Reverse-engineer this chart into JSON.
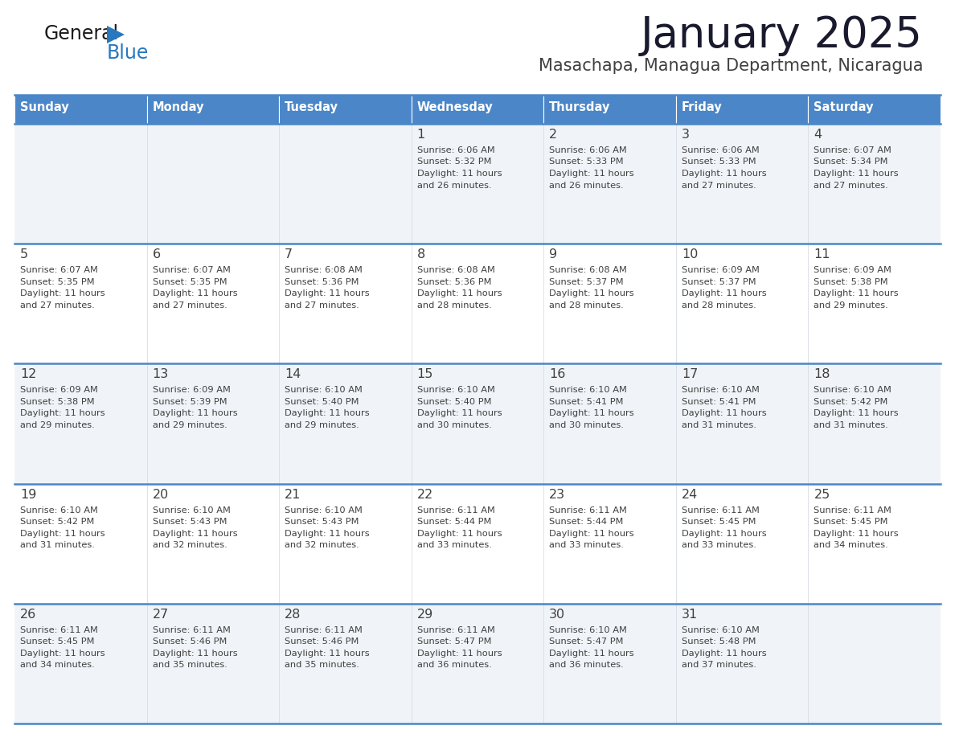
{
  "title": "January 2025",
  "subtitle": "Masachapa, Managua Department, Nicaragua",
  "days_of_week": [
    "Sunday",
    "Monday",
    "Tuesday",
    "Wednesday",
    "Thursday",
    "Friday",
    "Saturday"
  ],
  "header_bg": "#4a86c8",
  "header_text": "#ffffff",
  "cell_bg_odd": "#f0f4f8",
  "cell_bg_even": "#ffffff",
  "border_color": "#4a86c8",
  "inner_border_color": "#c8d8e8",
  "text_color": "#404040",
  "title_color": "#1a1a2e",
  "subtitle_color": "#404040",
  "logo_general_color": "#1a1a1a",
  "logo_blue_color": "#2878c0",
  "calendar": [
    [
      null,
      null,
      null,
      {
        "day": 1,
        "sunrise": "6:06 AM",
        "sunset": "5:32 PM",
        "daylight": "11 hours and 26 minutes."
      },
      {
        "day": 2,
        "sunrise": "6:06 AM",
        "sunset": "5:33 PM",
        "daylight": "11 hours and 26 minutes."
      },
      {
        "day": 3,
        "sunrise": "6:06 AM",
        "sunset": "5:33 PM",
        "daylight": "11 hours and 27 minutes."
      },
      {
        "day": 4,
        "sunrise": "6:07 AM",
        "sunset": "5:34 PM",
        "daylight": "11 hours and 27 minutes."
      }
    ],
    [
      {
        "day": 5,
        "sunrise": "6:07 AM",
        "sunset": "5:35 PM",
        "daylight": "11 hours and 27 minutes."
      },
      {
        "day": 6,
        "sunrise": "6:07 AM",
        "sunset": "5:35 PM",
        "daylight": "11 hours and 27 minutes."
      },
      {
        "day": 7,
        "sunrise": "6:08 AM",
        "sunset": "5:36 PM",
        "daylight": "11 hours and 27 minutes."
      },
      {
        "day": 8,
        "sunrise": "6:08 AM",
        "sunset": "5:36 PM",
        "daylight": "11 hours and 28 minutes."
      },
      {
        "day": 9,
        "sunrise": "6:08 AM",
        "sunset": "5:37 PM",
        "daylight": "11 hours and 28 minutes."
      },
      {
        "day": 10,
        "sunrise": "6:09 AM",
        "sunset": "5:37 PM",
        "daylight": "11 hours and 28 minutes."
      },
      {
        "day": 11,
        "sunrise": "6:09 AM",
        "sunset": "5:38 PM",
        "daylight": "11 hours and 29 minutes."
      }
    ],
    [
      {
        "day": 12,
        "sunrise": "6:09 AM",
        "sunset": "5:38 PM",
        "daylight": "11 hours and 29 minutes."
      },
      {
        "day": 13,
        "sunrise": "6:09 AM",
        "sunset": "5:39 PM",
        "daylight": "11 hours and 29 minutes."
      },
      {
        "day": 14,
        "sunrise": "6:10 AM",
        "sunset": "5:40 PM",
        "daylight": "11 hours and 29 minutes."
      },
      {
        "day": 15,
        "sunrise": "6:10 AM",
        "sunset": "5:40 PM",
        "daylight": "11 hours and 30 minutes."
      },
      {
        "day": 16,
        "sunrise": "6:10 AM",
        "sunset": "5:41 PM",
        "daylight": "11 hours and 30 minutes."
      },
      {
        "day": 17,
        "sunrise": "6:10 AM",
        "sunset": "5:41 PM",
        "daylight": "11 hours and 31 minutes."
      },
      {
        "day": 18,
        "sunrise": "6:10 AM",
        "sunset": "5:42 PM",
        "daylight": "11 hours and 31 minutes."
      }
    ],
    [
      {
        "day": 19,
        "sunrise": "6:10 AM",
        "sunset": "5:42 PM",
        "daylight": "11 hours and 31 minutes."
      },
      {
        "day": 20,
        "sunrise": "6:10 AM",
        "sunset": "5:43 PM",
        "daylight": "11 hours and 32 minutes."
      },
      {
        "day": 21,
        "sunrise": "6:10 AM",
        "sunset": "5:43 PM",
        "daylight": "11 hours and 32 minutes."
      },
      {
        "day": 22,
        "sunrise": "6:11 AM",
        "sunset": "5:44 PM",
        "daylight": "11 hours and 33 minutes."
      },
      {
        "day": 23,
        "sunrise": "6:11 AM",
        "sunset": "5:44 PM",
        "daylight": "11 hours and 33 minutes."
      },
      {
        "day": 24,
        "sunrise": "6:11 AM",
        "sunset": "5:45 PM",
        "daylight": "11 hours and 33 minutes."
      },
      {
        "day": 25,
        "sunrise": "6:11 AM",
        "sunset": "5:45 PM",
        "daylight": "11 hours and 34 minutes."
      }
    ],
    [
      {
        "day": 26,
        "sunrise": "6:11 AM",
        "sunset": "5:45 PM",
        "daylight": "11 hours and 34 minutes."
      },
      {
        "day": 27,
        "sunrise": "6:11 AM",
        "sunset": "5:46 PM",
        "daylight": "11 hours and 35 minutes."
      },
      {
        "day": 28,
        "sunrise": "6:11 AM",
        "sunset": "5:46 PM",
        "daylight": "11 hours and 35 minutes."
      },
      {
        "day": 29,
        "sunrise": "6:11 AM",
        "sunset": "5:47 PM",
        "daylight": "11 hours and 36 minutes."
      },
      {
        "day": 30,
        "sunrise": "6:10 AM",
        "sunset": "5:47 PM",
        "daylight": "11 hours and 36 minutes."
      },
      {
        "day": 31,
        "sunrise": "6:10 AM",
        "sunset": "5:48 PM",
        "daylight": "11 hours and 37 minutes."
      },
      null
    ]
  ]
}
